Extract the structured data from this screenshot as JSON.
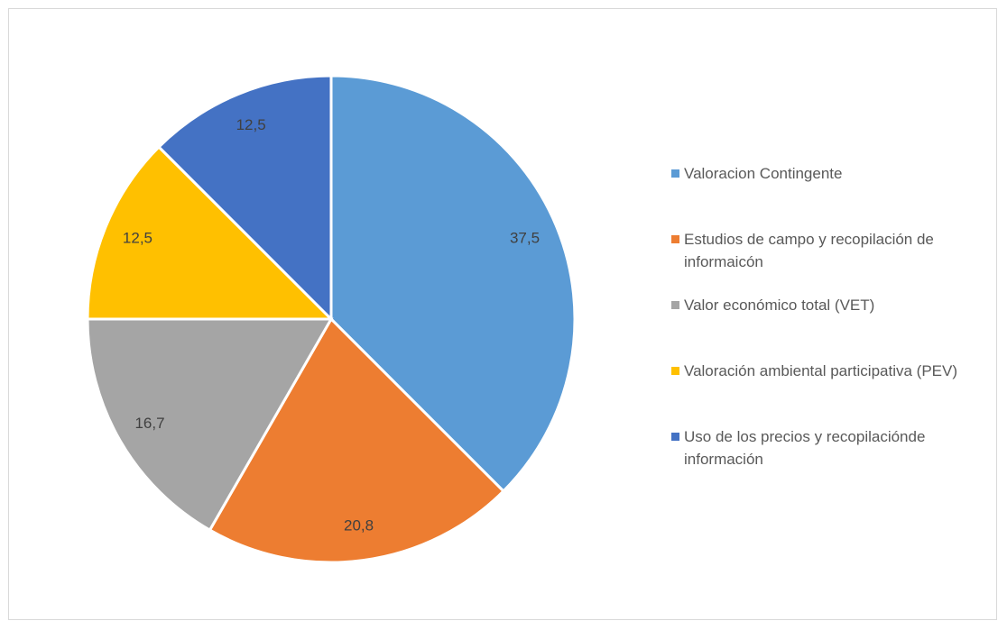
{
  "chart_data": {
    "type": "pie",
    "categories": [
      "Valoracion Contingente",
      "Estudios de campo y recopilación de informaicón",
      "Valor económico total (VET)",
      "Valoración ambiental participativa (PEV)",
      "Uso de los precios y recopilaciónde información"
    ],
    "values": [
      37.5,
      20.8,
      16.7,
      12.5,
      12.5
    ],
    "value_labels": [
      "37,5",
      "20,8",
      "16,7",
      "12,5",
      "12,5"
    ],
    "colors": [
      "#5b9bd5",
      "#ed7d31",
      "#a5a5a5",
      "#ffc000",
      "#4472c4"
    ],
    "legend": "right"
  }
}
